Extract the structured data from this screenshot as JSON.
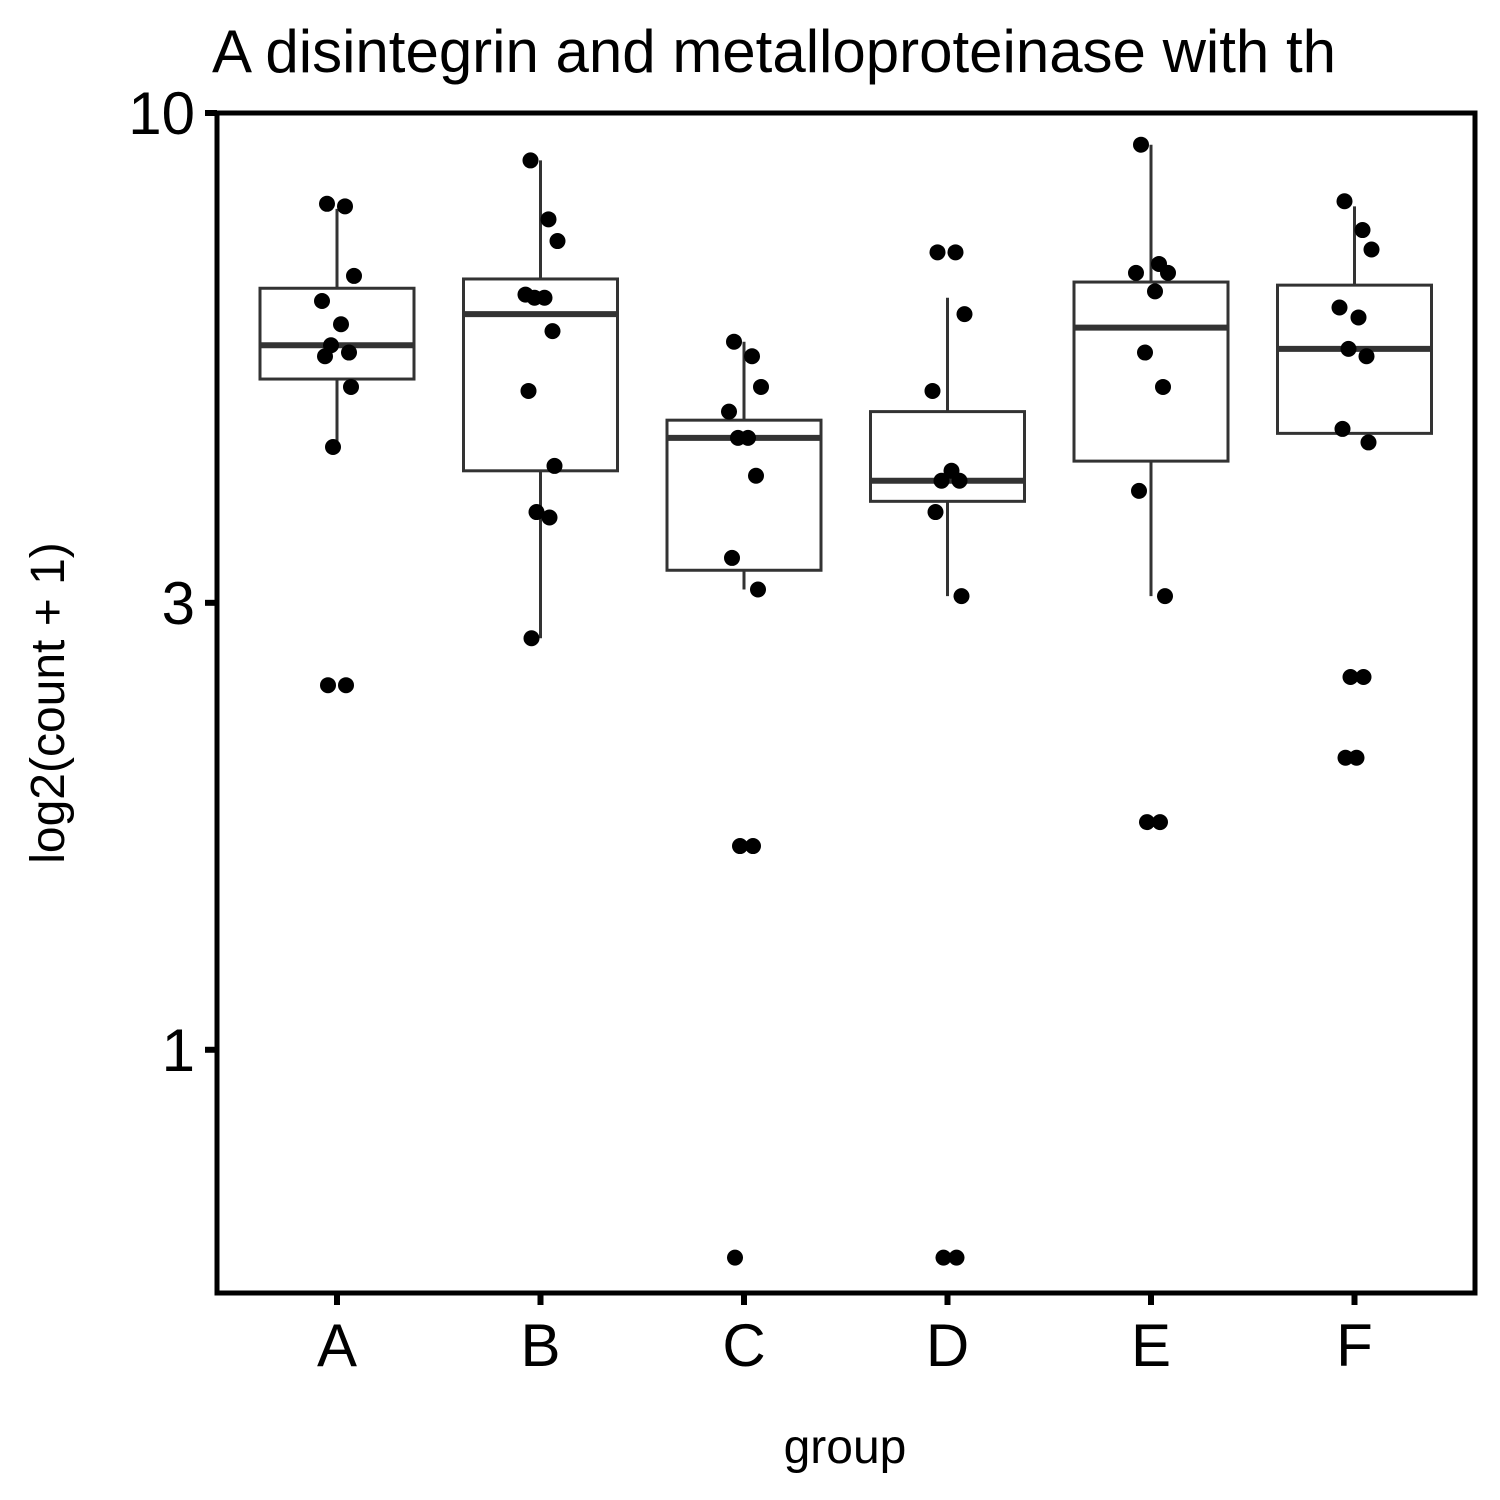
{
  "chart_data": {
    "type": "box",
    "title": "A disintegrin and metalloproteinase with th",
    "xlabel": "group",
    "ylabel": "log2(count + 1)",
    "y_scale": "log10",
    "ylim": [
      0.55,
      10
    ],
    "y_ticks": [
      1,
      3,
      10
    ],
    "y_tick_labels": [
      "1",
      "3",
      "10"
    ],
    "categories": [
      "A",
      "B",
      "C",
      "D",
      "E",
      "F"
    ],
    "grid": false,
    "legend": "none",
    "colors": {
      "box_stroke": "#333333",
      "point": "#000000",
      "axis": "#000000"
    },
    "boxes": [
      {
        "group": "A",
        "whisker_low": 4.4,
        "q1": 5.2,
        "median": 5.65,
        "q3": 6.5,
        "whisker_high": 7.9
      },
      {
        "group": "B",
        "whisker_low": 2.75,
        "q1": 4.15,
        "median": 6.1,
        "q3": 6.65,
        "whisker_high": 8.9
      },
      {
        "group": "C",
        "whisker_low": 3.1,
        "q1": 3.25,
        "median": 4.5,
        "q3": 4.7,
        "whisker_high": 5.7
      },
      {
        "group": "D",
        "whisker_low": 3.05,
        "q1": 3.85,
        "median": 4.05,
        "q3": 4.8,
        "whisker_high": 6.35
      },
      {
        "group": "E",
        "whisker_low": 3.05,
        "q1": 4.25,
        "median": 5.9,
        "q3": 6.6,
        "whisker_high": 9.25
      },
      {
        "group": "F",
        "whisker_low": 4.55,
        "q1": 4.55,
        "median": 5.6,
        "q3": 6.55,
        "whisker_high": 7.95
      }
    ],
    "points": [
      {
        "group": "A",
        "values": [
          8.0,
          7.95,
          6.7,
          6.3,
          5.95,
          5.65,
          5.55,
          5.5,
          5.1,
          4.4,
          2.45,
          2.45
        ]
      },
      {
        "group": "B",
        "values": [
          8.9,
          7.7,
          7.3,
          6.4,
          6.35,
          6.35,
          5.85,
          5.05,
          4.2,
          3.75,
          3.7,
          2.75
        ]
      },
      {
        "group": "C",
        "values": [
          5.7,
          5.5,
          5.1,
          4.8,
          4.5,
          4.5,
          4.1,
          3.35,
          3.1,
          1.65,
          1.65,
          0.6
        ]
      },
      {
        "group": "D",
        "values": [
          7.1,
          7.1,
          6.1,
          5.05,
          4.15,
          4.05,
          4.05,
          3.75,
          3.05,
          0.6,
          0.6
        ]
      },
      {
        "group": "E",
        "values": [
          9.25,
          6.9,
          6.75,
          6.75,
          6.45,
          5.55,
          5.1,
          3.95,
          3.05,
          1.75,
          1.75
        ]
      },
      {
        "group": "F",
        "values": [
          8.05,
          7.5,
          7.15,
          6.2,
          6.05,
          5.6,
          5.5,
          4.6,
          4.45,
          2.5,
          2.5,
          2.05,
          2.05
        ]
      }
    ]
  }
}
